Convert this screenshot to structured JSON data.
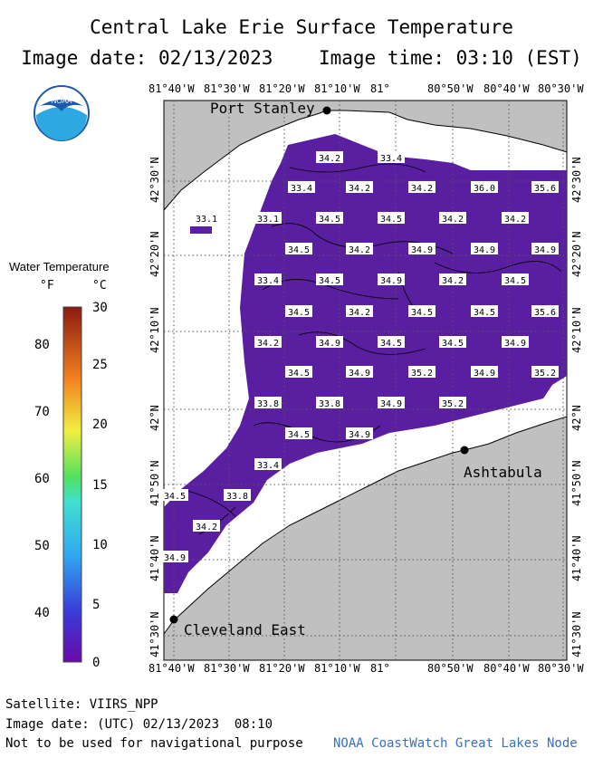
{
  "header": {
    "title": "Central Lake Erie Surface Temperature",
    "date_line": "Image date: 02/13/2023    Image time: 03:10 (EST)"
  },
  "logo": {
    "text": "NOAA",
    "color": "#1e5aa8"
  },
  "legend": {
    "title": "Water Temperature",
    "unit_f": "°F",
    "unit_c": "°C",
    "f_ticks": [
      "80",
      "70",
      "60",
      "50",
      "40"
    ],
    "c_ticks": [
      "30",
      "25",
      "20",
      "15",
      "10",
      "5",
      "0"
    ]
  },
  "map": {
    "lon_labels": [
      "81°40'W",
      "81°30'W",
      "81°20'W",
      "81°10'W",
      "81°",
      "80°50'W",
      "80°40'W",
      "80°30'W"
    ],
    "lat_labels": [
      "42°30'N",
      "42°20'N",
      "42°10'N",
      "42°N",
      "41°50'N",
      "41°40'N",
      "41°30'N"
    ],
    "places": [
      "Port Stanley",
      "Ashtabula",
      "Cleveland East"
    ],
    "colors": {
      "water": "#5a1fa0",
      "land": "#c0c0c0",
      "ice": "#ffffff"
    },
    "readings": [
      "34.2",
      "33.4",
      "33.4",
      "34.2",
      "34.2",
      "36.0",
      "35.6",
      "33.1",
      "33.1",
      "34.5",
      "34.5",
      "34.2",
      "34.2",
      "34.5",
      "34.2",
      "34.9",
      "34.9",
      "34.9",
      "33.4",
      "34.5",
      "34.9",
      "34.2",
      "34.5",
      "34.5",
      "34.2",
      "34.5",
      "34.5",
      "35.6",
      "34.2",
      "34.9",
      "34.5",
      "34.5",
      "34.9",
      "34.5",
      "34.9",
      "35.2",
      "34.9",
      "35.2",
      "33.8",
      "33.8",
      "34.9",
      "35.2",
      "34.5",
      "34.9",
      "33.4",
      "34.5",
      "33.8",
      "34.2",
      "34.9"
    ]
  },
  "footer": {
    "satellite": "Satellite: VIIRS_NPP",
    "utc": "Image date: (UTC) 02/13/2023  08:10",
    "disclaimer": "Not to be used for navigational purpose",
    "credit": "NOAA CoastWatch Great Lakes Node",
    "credit_color": "#3a6fc0"
  }
}
